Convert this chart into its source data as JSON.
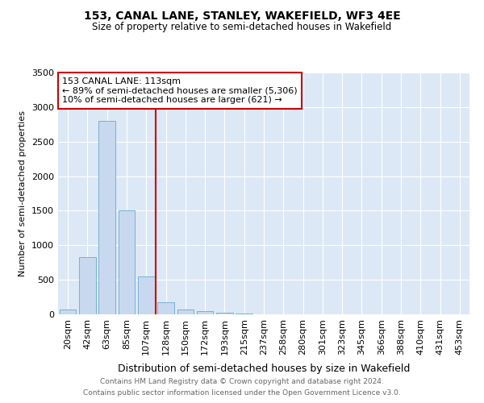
{
  "title": "153, CANAL LANE, STANLEY, WAKEFIELD, WF3 4EE",
  "subtitle": "Size of property relative to semi-detached houses in Wakefield",
  "xlabel": "Distribution of semi-detached houses by size in Wakefield",
  "ylabel": "Number of semi-detached properties",
  "annotation_line1": "153 CANAL LANE: 113sqm",
  "annotation_line2": "← 89% of semi-detached houses are smaller (5,306)",
  "annotation_line3": "10% of semi-detached houses are larger (621) →",
  "categories": [
    "20sqm",
    "42sqm",
    "63sqm",
    "85sqm",
    "107sqm",
    "128sqm",
    "150sqm",
    "172sqm",
    "193sqm",
    "215sqm",
    "237sqm",
    "258sqm",
    "280sqm",
    "301sqm",
    "323sqm",
    "345sqm",
    "366sqm",
    "388sqm",
    "410sqm",
    "431sqm",
    "453sqm"
  ],
  "values": [
    75,
    830,
    2800,
    1500,
    550,
    170,
    75,
    50,
    25,
    15,
    5,
    2,
    1,
    1,
    0,
    0,
    0,
    0,
    0,
    0,
    0
  ],
  "bar_color": "#c8d9ef",
  "bar_edge_color": "#7aafd4",
  "vline_color": "#cc0000",
  "vline_x": 4.5,
  "annotation_box_color": "#cc0000",
  "bg_color": "#dce8f5",
  "ylim": [
    0,
    3500
  ],
  "yticks": [
    0,
    500,
    1000,
    1500,
    2000,
    2500,
    3000,
    3500
  ],
  "footer_line1": "Contains HM Land Registry data © Crown copyright and database right 2024.",
  "footer_line2": "Contains public sector information licensed under the Open Government Licence v3.0."
}
